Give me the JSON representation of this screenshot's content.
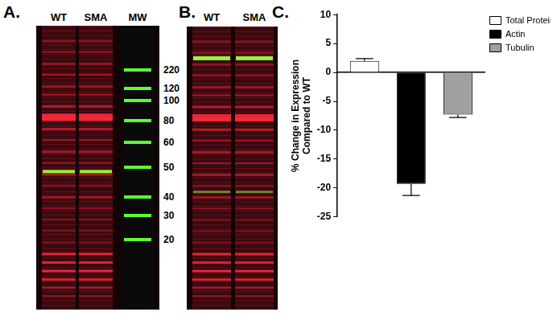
{
  "panel_labels": [
    "A.",
    "B.",
    "C."
  ],
  "gel_A": {
    "lanes": [
      "WT",
      "SMA",
      "MW"
    ],
    "mw_markers": [
      220,
      120,
      100,
      80,
      60,
      50,
      40,
      30,
      20
    ]
  },
  "gel_B": {
    "lanes": [
      "WT",
      "SMA"
    ]
  },
  "chart_data": {
    "type": "bar",
    "ylabel": "% Change in Expression Compared to WT",
    "categories": [
      null
    ],
    "series": [
      {
        "name": "Total Protein",
        "color": "#ffffff",
        "values": [
          2.0
        ],
        "errors": [
          0.4
        ]
      },
      {
        "name": "Actin",
        "color": "#000000",
        "values": [
          -19.3
        ],
        "errors": [
          2.0
        ]
      },
      {
        "name": "Tubulin",
        "color": "#a0a0a0",
        "values": [
          -7.3
        ],
        "errors": [
          0.5
        ]
      }
    ],
    "ylim": [
      -25,
      10
    ],
    "yticks": [
      -25,
      -20,
      -15,
      -10,
      -5,
      0,
      5,
      10
    ],
    "legend": "right",
    "tick_labels": "y",
    "grid": false
  }
}
